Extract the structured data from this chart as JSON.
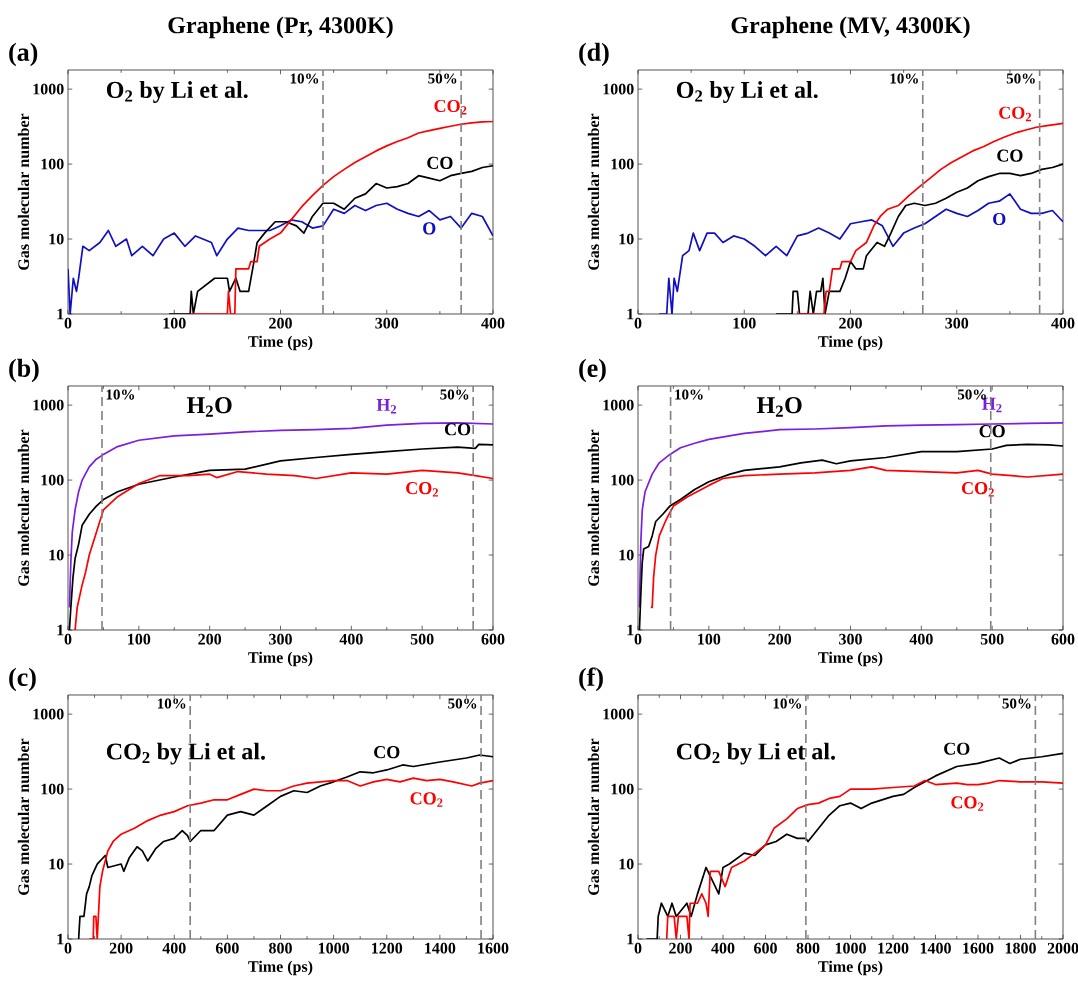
{
  "chart_data": [
    {
      "type": "line",
      "title": "Graphene (Pr, 4300K)",
      "xlabel": "Time (ps)",
      "ylabel": "Gas molecular number",
      "log": "y",
      "line_style": "solid",
      "xlim": [
        0,
        400
      ],
      "ylim": [
        1,
        1800
      ],
      "xticks": [
        0,
        100,
        200,
        300,
        400
      ],
      "yticks": [
        1,
        10,
        100,
        1000
      ],
      "annotations": [
        "(a)",
        "O$_{2}$ by Li et al.",
        {
          "text": "10%",
          "x": 240,
          "y": 1800
        },
        {
          "text": "50%",
          "x": 370,
          "y": 1800
        }
      ],
      "ref_lines": [
        {
          "axis": "x",
          "value": 240,
          "color": "#808080",
          "line_style": "dashed"
        },
        {
          "axis": "x",
          "value": 370,
          "color": "#808080",
          "line_style": "dashed"
        }
      ],
      "series": [
        {
          "name": "O",
          "color": "#1010c0",
          "x": [
            0,
            2,
            5,
            8,
            10,
            14,
            20,
            30,
            38,
            45,
            55,
            60,
            70,
            80,
            90,
            100,
            110,
            120,
            135,
            140,
            150,
            160,
            170,
            180,
            190,
            200,
            210,
            220,
            230,
            240,
            250,
            260,
            270,
            280,
            290,
            300,
            310,
            320,
            330,
            340,
            350,
            360,
            370,
            380,
            390,
            400
          ],
          "values": [
            4,
            1,
            3,
            2,
            3,
            8,
            7,
            9,
            13,
            8,
            10,
            6,
            8,
            6,
            10,
            12,
            8,
            11,
            9,
            6,
            10,
            14,
            13,
            13,
            13,
            15,
            18,
            17,
            14,
            15,
            25,
            22,
            28,
            24,
            28,
            30,
            25,
            22,
            20,
            24,
            18,
            20,
            14,
            22,
            20,
            11
          ]
        },
        {
          "name": "CO",
          "color": "#000000",
          "x": [
            95,
            115,
            116,
            118,
            122,
            138,
            150,
            152,
            158,
            162,
            170,
            175,
            178,
            185,
            195,
            205,
            215,
            222,
            230,
            240,
            250,
            260,
            270,
            280,
            290,
            300,
            310,
            320,
            330,
            340,
            350,
            360,
            370,
            380,
            390,
            400
          ],
          "values": [
            1,
            1,
            2,
            1,
            2,
            3,
            3,
            2,
            3,
            2,
            2,
            5,
            9,
            12,
            17,
            17,
            15,
            12,
            20,
            30,
            30,
            25,
            35,
            40,
            55,
            48,
            50,
            55,
            70,
            65,
            60,
            70,
            75,
            80,
            90,
            95
          ]
        },
        {
          "name": "CO$_{2}$",
          "color": "#ff0000",
          "x": [
            115,
            150,
            151,
            153,
            157,
            158,
            170,
            172,
            178,
            180,
            190,
            200,
            210,
            220,
            230,
            240,
            250,
            260,
            270,
            280,
            290,
            300,
            310,
            320,
            330,
            340,
            350,
            360,
            370,
            380,
            390,
            400
          ],
          "values": [
            1,
            1,
            2,
            1,
            1,
            4,
            4,
            5,
            5,
            8,
            10,
            12,
            18,
            27,
            38,
            52,
            68,
            85,
            105,
            125,
            150,
            175,
            200,
            225,
            260,
            280,
            300,
            320,
            340,
            355,
            365,
            370
          ]
        }
      ]
    },
    {
      "type": "line",
      "xlabel": "Time (ps)",
      "ylabel": "Gas molecular number",
      "log": "y",
      "line_style": "solid",
      "xlim": [
        0,
        600
      ],
      "ylim": [
        1,
        1800
      ],
      "xticks": [
        0,
        100,
        200,
        300,
        400,
        500,
        600
      ],
      "yticks": [
        1,
        10,
        100,
        1000
      ],
      "annotations": [
        "(b)",
        "H$_{2}$O",
        {
          "text": "10%",
          "x": 48,
          "y": 1800
        },
        {
          "text": "50%",
          "x": 572,
          "y": 1800
        }
      ],
      "ref_lines": [
        {
          "axis": "x",
          "value": 48,
          "color": "#808080",
          "line_style": "dashed"
        },
        {
          "axis": "x",
          "value": 572,
          "color": "#808080",
          "line_style": "dashed"
        }
      ],
      "series": [
        {
          "name": "H$_{2}$",
          "color": "#7a1ee0",
          "x": [
            2,
            4,
            6,
            10,
            15,
            20,
            30,
            40,
            50,
            70,
            100,
            150,
            200,
            250,
            300,
            350,
            400,
            450,
            500,
            550,
            600
          ],
          "values": [
            2,
            8,
            20,
            40,
            70,
            100,
            150,
            190,
            220,
            280,
            340,
            390,
            410,
            440,
            460,
            470,
            490,
            540,
            570,
            580,
            560
          ]
        },
        {
          "name": "CO",
          "color": "#000000",
          "x": [
            2,
            4,
            7,
            10,
            15,
            20,
            30,
            40,
            50,
            70,
            100,
            150,
            200,
            250,
            300,
            350,
            400,
            450,
            500,
            550,
            575,
            580,
            600
          ],
          "values": [
            1,
            2,
            5,
            9,
            14,
            25,
            35,
            45,
            55,
            70,
            88,
            110,
            135,
            140,
            180,
            200,
            220,
            240,
            260,
            275,
            265,
            300,
            295
          ]
        },
        {
          "name": "CO$_{2}$",
          "color": "#ff0000",
          "x": [
            10,
            13,
            20,
            25,
            30,
            40,
            50,
            70,
            100,
            130,
            170,
            200,
            210,
            240,
            280,
            320,
            350,
            400,
            450,
            500,
            550,
            575,
            600
          ],
          "values": [
            1,
            2,
            4,
            6,
            10,
            20,
            40,
            60,
            90,
            115,
            115,
            120,
            108,
            130,
            120,
            115,
            105,
            125,
            120,
            135,
            125,
            115,
            105
          ]
        }
      ]
    },
    {
      "type": "line",
      "xlabel": "Time (ps)",
      "ylabel": "Gas molecular number",
      "log": "y",
      "line_style": "solid",
      "xlim": [
        0,
        1600
      ],
      "ylim": [
        1,
        1800
      ],
      "xticks": [
        0,
        200,
        400,
        600,
        800,
        1000,
        1200,
        1400,
        1600
      ],
      "yticks": [
        1,
        10,
        100,
        1000
      ],
      "annotations": [
        "(c)",
        "CO$_{2}$ by Li et al.",
        {
          "text": "10%",
          "x": 460,
          "y": 1800
        },
        {
          "text": "50%",
          "x": 1555,
          "y": 1800
        }
      ],
      "ref_lines": [
        {
          "axis": "x",
          "value": 460,
          "color": "#808080",
          "line_style": "dashed"
        },
        {
          "axis": "x",
          "value": 1555,
          "color": "#808080",
          "line_style": "dashed"
        }
      ],
      "series": [
        {
          "name": "CO",
          "color": "#000000",
          "x": [
            40,
            45,
            60,
            70,
            80,
            90,
            110,
            140,
            150,
            200,
            210,
            230,
            260,
            280,
            300,
            330,
            360,
            400,
            430,
            450,
            460,
            500,
            550,
            600,
            650,
            700,
            750,
            800,
            850,
            900,
            950,
            1000,
            1050,
            1100,
            1150,
            1200,
            1260,
            1300,
            1400,
            1500,
            1550,
            1600
          ],
          "values": [
            1,
            2,
            2,
            4,
            5,
            7,
            10,
            13,
            9,
            10,
            8,
            12,
            17,
            15,
            11,
            16,
            20,
            22,
            28,
            24,
            20,
            28,
            28,
            45,
            50,
            45,
            60,
            80,
            95,
            90,
            110,
            125,
            145,
            170,
            165,
            180,
            210,
            200,
            230,
            260,
            285,
            270
          ]
        },
        {
          "name": "CO$_{2}$",
          "color": "#ff0000",
          "x": [
            80,
            95,
            97,
            105,
            110,
            120,
            130,
            150,
            170,
            200,
            250,
            300,
            350,
            400,
            450,
            500,
            550,
            600,
            650,
            700,
            750,
            800,
            850,
            900,
            950,
            1000,
            1050,
            1100,
            1150,
            1200,
            1250,
            1300,
            1350,
            1400,
            1450,
            1520,
            1550,
            1600
          ],
          "values": [
            1,
            1,
            2,
            2,
            1,
            5,
            8,
            15,
            20,
            25,
            30,
            38,
            45,
            50,
            60,
            65,
            72,
            72,
            85,
            100,
            95,
            95,
            110,
            120,
            125,
            130,
            130,
            110,
            125,
            135,
            125,
            140,
            130,
            135,
            125,
            110,
            120,
            130
          ]
        }
      ]
    },
    {
      "type": "line",
      "title": "Graphene (MV, 4300K)",
      "xlabel": "Time (ps)",
      "ylabel": "Gas molecular number",
      "log": "y",
      "line_style": "solid",
      "xlim": [
        0,
        400
      ],
      "ylim": [
        1,
        1800
      ],
      "xticks": [
        0,
        100,
        200,
        300,
        400
      ],
      "yticks": [
        1,
        10,
        100,
        1000
      ],
      "annotations": [
        "(d)",
        "O$_{2}$ by Li et al.",
        {
          "text": "10%",
          "x": 268,
          "y": 1800
        },
        {
          "text": "50%",
          "x": 378,
          "y": 1800
        }
      ],
      "ref_lines": [
        {
          "axis": "x",
          "value": 268,
          "color": "#808080",
          "line_style": "dashed"
        },
        {
          "axis": "x",
          "value": 378,
          "color": "#808080",
          "line_style": "dashed"
        }
      ],
      "series": [
        {
          "name": "O",
          "color": "#1010c0",
          "x": [
            20,
            27,
            29,
            32,
            34,
            37,
            42,
            48,
            52,
            58,
            65,
            72,
            80,
            90,
            100,
            110,
            120,
            130,
            140,
            150,
            160,
            170,
            180,
            190,
            200,
            210,
            220,
            230,
            240,
            250,
            260,
            270,
            280,
            290,
            300,
            310,
            320,
            330,
            340,
            350,
            360,
            370,
            380,
            390,
            400
          ],
          "values": [
            1,
            1,
            3,
            1,
            3,
            2,
            6,
            7,
            12,
            7,
            12,
            12,
            9,
            11,
            10,
            8,
            6,
            8,
            6,
            11,
            12,
            14,
            12,
            10,
            16,
            17,
            18,
            15,
            8,
            12,
            14,
            16,
            20,
            25,
            22,
            20,
            24,
            30,
            32,
            40,
            25,
            22,
            22,
            24,
            17
          ]
        },
        {
          "name": "CO",
          "color": "#000000",
          "x": [
            130,
            145,
            146,
            150,
            152,
            160,
            162,
            165,
            168,
            172,
            174,
            176,
            180,
            190,
            195,
            200,
            205,
            212,
            215,
            225,
            232,
            238,
            245,
            252,
            260,
            270,
            280,
            290,
            300,
            310,
            320,
            330,
            340,
            350,
            360,
            370,
            380,
            390,
            400
          ],
          "values": [
            1,
            1,
            2,
            2,
            1,
            1,
            2,
            1,
            2,
            2,
            3,
            1,
            2,
            2,
            3,
            5,
            4,
            4,
            6,
            9,
            8,
            12,
            20,
            28,
            30,
            28,
            30,
            35,
            42,
            48,
            60,
            68,
            75,
            75,
            70,
            75,
            85,
            90,
            100
          ]
        },
        {
          "name": "CO$_{2}$",
          "color": "#ff0000",
          "x": [
            150,
            175,
            177,
            180,
            183,
            190,
            192,
            200,
            205,
            215,
            222,
            228,
            235,
            245,
            255,
            265,
            275,
            285,
            295,
            305,
            315,
            325,
            335,
            345,
            355,
            365,
            375,
            385,
            400
          ],
          "values": [
            1,
            1,
            2,
            2,
            4,
            4,
            5,
            5,
            7,
            9,
            15,
            20,
            25,
            28,
            38,
            50,
            65,
            85,
            105,
            125,
            150,
            170,
            200,
            230,
            260,
            285,
            310,
            325,
            350
          ]
        }
      ]
    },
    {
      "type": "line",
      "xlabel": "Time (ps)",
      "ylabel": "Gas molecular number",
      "log": "y",
      "line_style": "solid",
      "xlim": [
        0,
        600
      ],
      "ylim": [
        1,
        1800
      ],
      "xticks": [
        0,
        100,
        200,
        300,
        400,
        500,
        600
      ],
      "yticks": [
        1,
        10,
        100,
        1000
      ],
      "annotations": [
        "(e)",
        "H$_{2}$O",
        {
          "text": "10%",
          "x": 46,
          "y": 1800
        },
        {
          "text": "50%",
          "x": 498,
          "y": 1800
        }
      ],
      "ref_lines": [
        {
          "axis": "x",
          "value": 46,
          "color": "#808080",
          "line_style": "dashed"
        },
        {
          "axis": "x",
          "value": 498,
          "color": "#808080",
          "line_style": "dashed"
        }
      ],
      "series": [
        {
          "name": "H$_{2}$",
          "color": "#7a1ee0",
          "x": [
            2,
            4,
            6,
            10,
            20,
            30,
            45,
            60,
            80,
            100,
            150,
            200,
            250,
            300,
            350,
            400,
            450,
            500,
            550,
            600
          ],
          "values": [
            2,
            15,
            40,
            70,
            120,
            170,
            220,
            270,
            310,
            350,
            420,
            470,
            480,
            500,
            530,
            540,
            550,
            560,
            570,
            580
          ]
        },
        {
          "name": "CO",
          "color": "#000000",
          "x": [
            2,
            4,
            6,
            8,
            15,
            20,
            25,
            35,
            45,
            60,
            80,
            100,
            130,
            150,
            200,
            230,
            260,
            280,
            300,
            350,
            400,
            450,
            500,
            520,
            550,
            580,
            600
          ],
          "values": [
            1,
            3,
            8,
            12,
            13,
            18,
            28,
            35,
            45,
            55,
            75,
            95,
            120,
            135,
            150,
            170,
            185,
            165,
            180,
            200,
            240,
            240,
            260,
            290,
            300,
            295,
            285
          ]
        },
        {
          "name": "CO$_{2}$",
          "color": "#ff0000",
          "x": [
            18,
            20,
            22,
            25,
            30,
            40,
            50,
            70,
            100,
            120,
            150,
            200,
            250,
            300,
            330,
            350,
            400,
            450,
            480,
            500,
            550,
            600
          ],
          "values": [
            2,
            2,
            5,
            10,
            18,
            30,
            45,
            60,
            85,
            105,
            115,
            120,
            125,
            135,
            150,
            135,
            130,
            125,
            135,
            120,
            110,
            120
          ]
        }
      ]
    },
    {
      "type": "line",
      "xlabel": "Time (ps)",
      "ylabel": "Gas molecular number",
      "log": "y",
      "line_style": "solid",
      "xlim": [
        0,
        2000
      ],
      "ylim": [
        1,
        1800
      ],
      "xticks": [
        0,
        200,
        400,
        600,
        800,
        1000,
        1200,
        1400,
        1600,
        1800,
        2000
      ],
      "yticks": [
        1,
        10,
        100,
        1000
      ],
      "annotations": [
        "(f)",
        "CO$_{2}$ by Li et al.",
        {
          "text": "10%",
          "x": 790,
          "y": 1800
        },
        {
          "text": "50%",
          "x": 1870,
          "y": 1800
        }
      ],
      "ref_lines": [
        {
          "axis": "x",
          "value": 790,
          "color": "#808080",
          "line_style": "dashed"
        },
        {
          "axis": "x",
          "value": 1870,
          "color": "#808080",
          "line_style": "dashed"
        }
      ],
      "series": [
        {
          "name": "CO",
          "color": "#000000",
          "x": [
            40,
            90,
            95,
            110,
            140,
            160,
            180,
            230,
            250,
            280,
            300,
            320,
            350,
            380,
            400,
            430,
            500,
            550,
            600,
            650,
            700,
            750,
            790,
            800,
            850,
            900,
            950,
            1000,
            1050,
            1100,
            1200,
            1250,
            1300,
            1400,
            1500,
            1600,
            1700,
            1750,
            1800,
            1900,
            2000
          ],
          "values": [
            1,
            1,
            2,
            3,
            2,
            3,
            2,
            3,
            2,
            4,
            6,
            9,
            6,
            4,
            9,
            10,
            14,
            13,
            18,
            20,
            25,
            22,
            22,
            20,
            30,
            45,
            60,
            65,
            55,
            65,
            80,
            85,
            105,
            150,
            200,
            220,
            260,
            220,
            250,
            270,
            300
          ]
        },
        {
          "name": "CO$_{2}$",
          "color": "#ff0000",
          "x": [
            135,
            140,
            170,
            180,
            190,
            230,
            240,
            245,
            280,
            300,
            320,
            330,
            340,
            380,
            410,
            440,
            500,
            550,
            600,
            640,
            700,
            750,
            800,
            850,
            900,
            950,
            1000,
            1050,
            1100,
            1200,
            1300,
            1350,
            1400,
            1500,
            1550,
            1600,
            1650,
            1700,
            1800,
            1900,
            2000
          ],
          "values": [
            1,
            2,
            2,
            1,
            2,
            2,
            1,
            3,
            3,
            4,
            3,
            2,
            8,
            8,
            5,
            9,
            11,
            14,
            18,
            30,
            40,
            55,
            62,
            65,
            75,
            80,
            100,
            100,
            100,
            105,
            110,
            130,
            115,
            120,
            115,
            115,
            120,
            130,
            125,
            125,
            120
          ]
        }
      ]
    }
  ]
}
